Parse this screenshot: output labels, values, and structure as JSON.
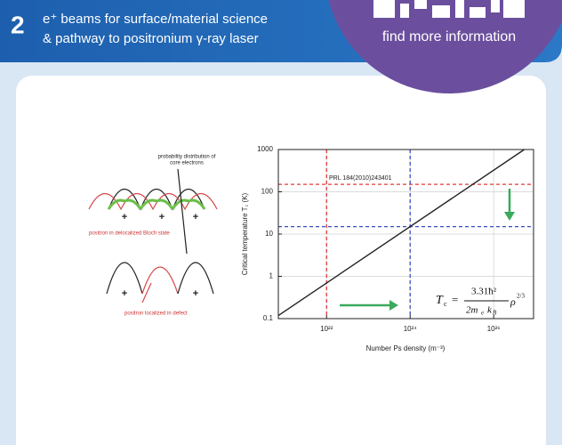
{
  "header": {
    "number": "2",
    "title_line1": "e⁺ beams for surface/material science",
    "title_line2": "& pathway to positronium γ-ray laser",
    "link": "find more information"
  },
  "diagram": {
    "label_core": "probability distribution of",
    "label_core2": "core electrons",
    "label_bloch": "positron in delocalized Bloch state",
    "label_defect": "positron localized in defect",
    "plus": "+"
  },
  "chart_data": {
    "type": "line",
    "x_label": "Number Ps density (m⁻³)",
    "y_label": "Critical temperature T꜀ (K)",
    "annotation": "PRL 184(2010)243401",
    "equation": {
      "lhs": "T",
      "lhs_sub": "c",
      "eq": "=",
      "num": "3.31ħ²",
      "den": "2m",
      "den_sub": "e",
      "den2": "k",
      "den2_sub": "B",
      "rho": "ρ",
      "rho_sup": "2/3"
    },
    "x_scale": "log",
    "y_scale": "log",
    "grid": true,
    "xlim": [
      7e+20,
      9e+26
    ],
    "ylim": [
      0.1,
      1000
    ],
    "xticks": [
      {
        "value": 1e+22,
        "label": "10²²"
      },
      {
        "value": 1e+24,
        "label": "10²⁴"
      },
      {
        "value": 1e+26,
        "label": "10²⁶"
      }
    ],
    "yticks": [
      0.1,
      1,
      10,
      100,
      1000
    ],
    "series": [
      {
        "name": null,
        "color": "#222222",
        "x": [
          7e+20,
          5.4e+26
        ],
        "values": [
          0.118,
          1000
        ]
      }
    ],
    "reference_lines": [
      {
        "axis": "y",
        "value": 150,
        "color": "#e03a3a"
      },
      {
        "axis": "x",
        "value": 1e+22,
        "color": "#e03a3a"
      },
      {
        "axis": "y",
        "value": 15,
        "color": "#3a4fc0"
      },
      {
        "axis": "x",
        "value": 1e+24,
        "color": "#3a4fc0"
      }
    ]
  }
}
